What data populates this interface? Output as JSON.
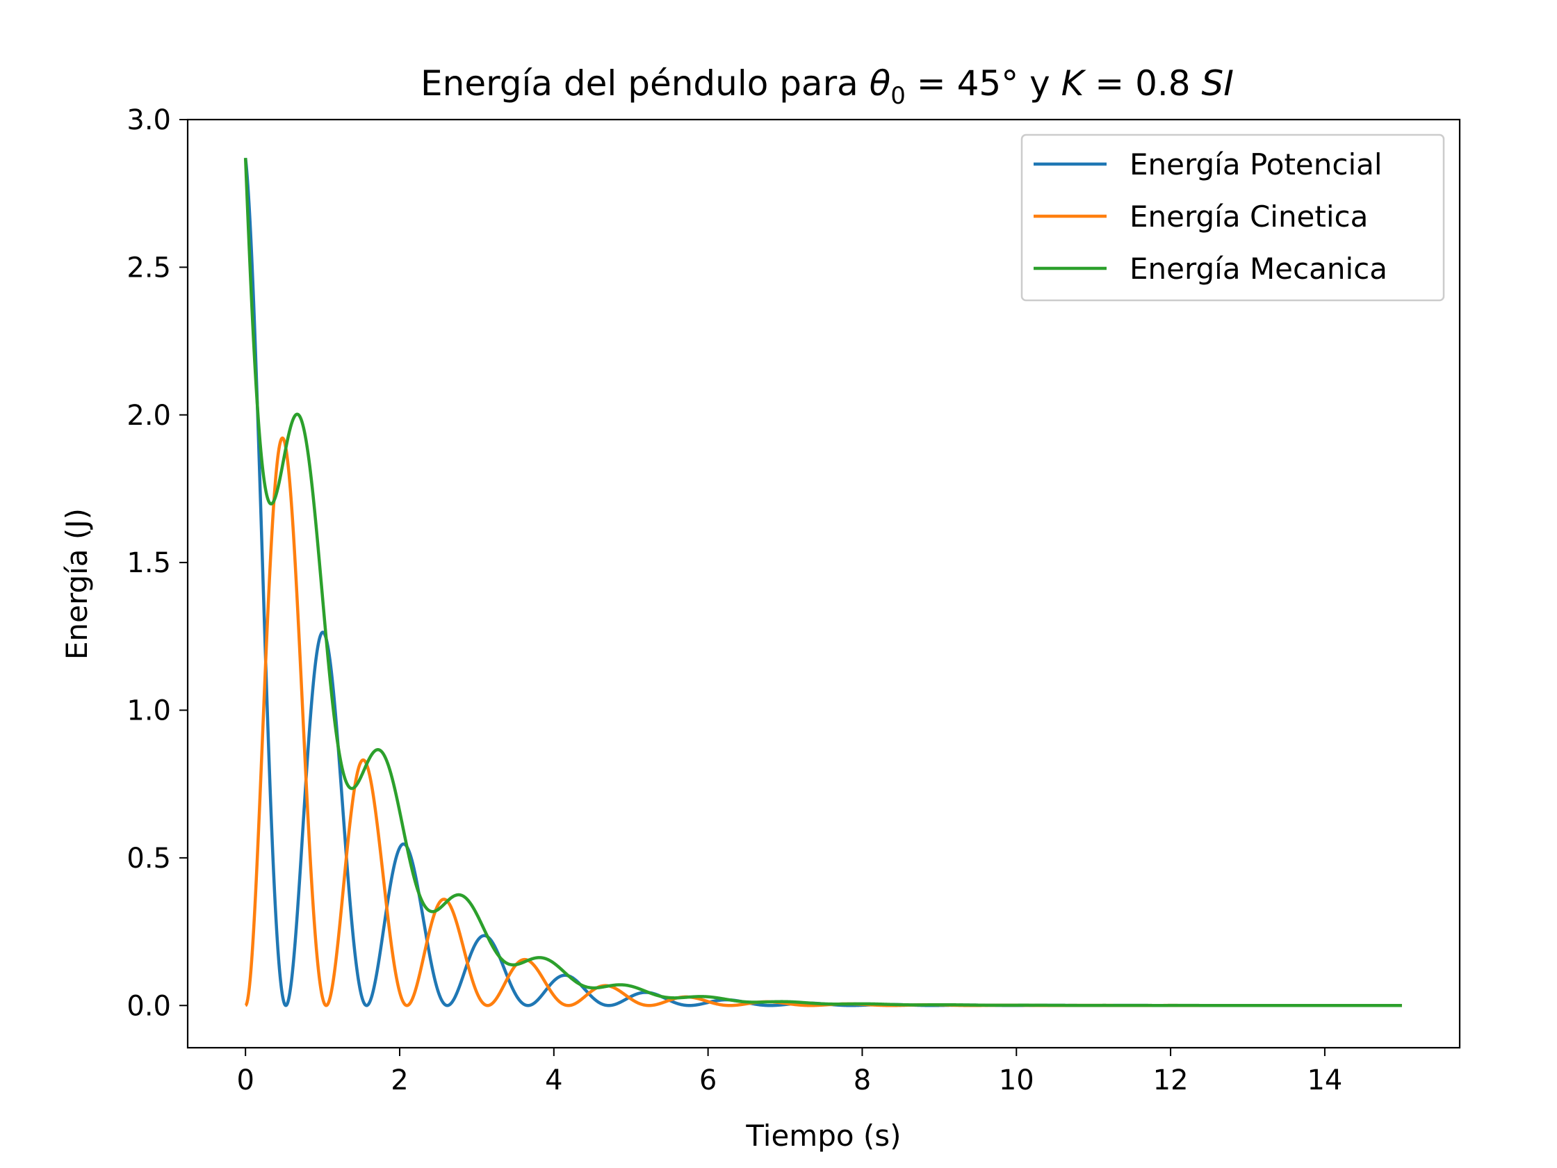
{
  "chart_data": {
    "type": "line",
    "title_parts": {
      "prefix": "Energía del péndulo para ",
      "theta": "θ",
      "theta_sub": "0",
      "middle": " = 45° y ",
      "k": "K",
      "k_rest": " = 0.8 ",
      "unit": "SI"
    },
    "xlabel": "Tiempo (s)",
    "ylabel": "Energía (J)",
    "xlim": [
      -0.75,
      15.75
    ],
    "ylim": [
      -0.143,
      3.0
    ],
    "xticks": [
      0,
      2,
      4,
      6,
      8,
      10,
      12,
      14
    ],
    "xtick_labels": [
      "0",
      "2",
      "4",
      "6",
      "8",
      "10",
      "12",
      "14"
    ],
    "yticks": [
      0.0,
      0.5,
      1.0,
      1.5,
      2.0,
      2.5,
      3.0
    ],
    "ytick_labels": [
      "0.0",
      "0.5",
      "1.0",
      "1.5",
      "2.0",
      "2.5",
      "3.0"
    ],
    "grid": false,
    "legend_position": "top-right",
    "x_range": [
      0,
      15
    ],
    "mechanical_initial": 2.87,
    "decay_rate": 0.8,
    "angular_frequency": 3.0,
    "series": [
      {
        "name": "Energía Potencial",
        "color": "#1f77b4"
      },
      {
        "name": "Energía Cinetica",
        "color": "#ff7f0e"
      },
      {
        "name": "Energía Mecanica",
        "color": "#2ca02c"
      }
    ]
  }
}
